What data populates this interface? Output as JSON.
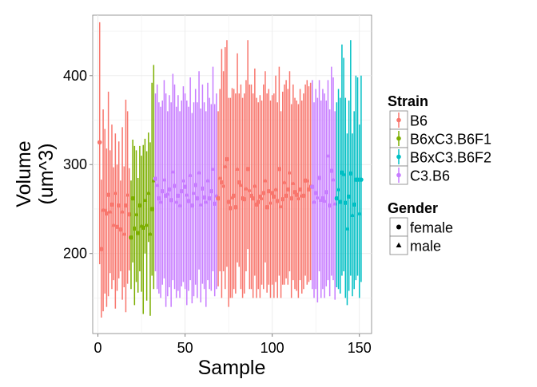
{
  "chart_data": {
    "type": "scatter",
    "subtype": "point-range (errorbar) plot",
    "xlabel": "Sample",
    "ylabel_lines": [
      "Volume",
      "(um^3)"
    ],
    "xlim": [
      -3,
      157
    ],
    "ylim": [
      110,
      468
    ],
    "x_ticks": [
      0,
      50,
      100,
      150
    ],
    "y_ticks": [
      200,
      300,
      400
    ],
    "grid": true,
    "legend_position": "right",
    "legends": [
      {
        "title": "Strain",
        "entries": [
          {
            "label": "B6",
            "color": "#F8766D"
          },
          {
            "label": "B6xC3.B6F1",
            "color": "#7CAE00"
          },
          {
            "label": "B6xC3.B6F2",
            "color": "#00BFC4"
          },
          {
            "label": "C3.B6",
            "color": "#C77CFF"
          }
        ]
      },
      {
        "title": "Gender",
        "entries": [
          {
            "label": "female",
            "shape": "circle"
          },
          {
            "label": "male",
            "shape": "triangle"
          }
        ]
      }
    ],
    "series": [
      {
        "strain": "B6",
        "x_from": 1,
        "x_to": 18,
        "samples": [
          [
            325,
            188,
            460,
            "f"
          ],
          [
            205,
            128,
            283,
            "f"
          ],
          [
            249,
            135,
            362,
            "m"
          ],
          [
            249,
            155,
            340,
            "m"
          ],
          [
            245,
            140,
            318,
            "f"
          ],
          [
            266,
            152,
            382,
            "f"
          ],
          [
            247,
            178,
            316,
            "m"
          ],
          [
            255,
            160,
            345,
            "f"
          ],
          [
            232,
            170,
            297,
            "m"
          ],
          [
            268,
            138,
            335,
            "m"
          ],
          [
            230,
            158,
            300,
            "f"
          ],
          [
            254,
            172,
            326,
            "f"
          ],
          [
            227,
            180,
            282,
            "f"
          ],
          [
            247,
            148,
            342,
            "m"
          ],
          [
            222,
            162,
            298,
            "m"
          ],
          [
            254,
            134,
            373,
            "f"
          ],
          [
            266,
            166,
            360,
            "m"
          ],
          [
            244,
            181,
            296,
            "f"
          ]
        ]
      },
      {
        "strain": "B6xC3.B6F1",
        "x_from": 19,
        "x_to": 32,
        "samples": [
          [
            218,
            160,
            282,
            "f"
          ],
          [
            262,
            190,
            328,
            "f"
          ],
          [
            228,
            142,
            321,
            "f"
          ],
          [
            244,
            168,
            316,
            "m"
          ],
          [
            223,
            156,
            285,
            "f"
          ],
          [
            254,
            180,
            321,
            "f"
          ],
          [
            231,
            157,
            310,
            "m"
          ],
          [
            229,
            132,
            322,
            "f"
          ],
          [
            260,
            200,
            329,
            "m"
          ],
          [
            232,
            147,
            315,
            "m"
          ],
          [
            268,
            213,
            336,
            "m"
          ],
          [
            222,
            130,
            325,
            "m"
          ],
          [
            250,
            175,
            392,
            "f"
          ],
          [
            282,
            160,
            412,
            "m"
          ]
        ]
      },
      {
        "strain": "C3.B6",
        "x_from": 33,
        "x_to": 68,
        "samples": [
          [
            284,
            180,
            380,
            "f"
          ],
          [
            277,
            160,
            390,
            "m"
          ],
          [
            262,
            155,
            370,
            "f"
          ],
          [
            258,
            150,
            365,
            "m"
          ],
          [
            270,
            165,
            372,
            "f"
          ],
          [
            283,
            172,
            395,
            "m"
          ],
          [
            265,
            140,
            380,
            "f"
          ],
          [
            267,
            152,
            360,
            "m"
          ],
          [
            272,
            162,
            378,
            "f"
          ],
          [
            260,
            140,
            370,
            "f"
          ],
          [
            292,
            170,
            402,
            "m"
          ],
          [
            276,
            160,
            390,
            "f"
          ],
          [
            258,
            150,
            365,
            "m"
          ],
          [
            265,
            158,
            378,
            "f"
          ],
          [
            254,
            150,
            360,
            "m"
          ],
          [
            270,
            163,
            372,
            "f"
          ],
          [
            282,
            168,
            388,
            "m"
          ],
          [
            275,
            160,
            380,
            "f"
          ],
          [
            266,
            142,
            372,
            "m"
          ],
          [
            259,
            158,
            365,
            "f"
          ],
          [
            288,
            170,
            398,
            "m"
          ],
          [
            254,
            144,
            358,
            "f"
          ],
          [
            268,
            152,
            370,
            "m"
          ],
          [
            277,
            165,
            385,
            "f"
          ],
          [
            262,
            150,
            370,
            "f"
          ],
          [
            291,
            182,
            405,
            "m"
          ],
          [
            255,
            145,
            363,
            "m"
          ],
          [
            273,
            166,
            390,
            "f"
          ],
          [
            263,
            160,
            370,
            "f"
          ],
          [
            258,
            140,
            360,
            "m"
          ],
          [
            282,
            170,
            392,
            "m"
          ],
          [
            262,
            160,
            375,
            "f"
          ],
          [
            270,
            158,
            368,
            "f"
          ],
          [
            295,
            180,
            410,
            "m"
          ],
          [
            256,
            152,
            368,
            "f"
          ],
          [
            265,
            160,
            380,
            "m"
          ]
        ]
      },
      {
        "strain": "B6",
        "x_from": 69,
        "x_to": 122,
        "samples": [
          [
            262,
            163,
            360,
            "f"
          ],
          [
            285,
            180,
            385,
            "m"
          ],
          [
            280,
            150,
            430,
            "f"
          ],
          [
            276,
            180,
            405,
            "m"
          ],
          [
            298,
            160,
            432,
            "m"
          ],
          [
            306,
            185,
            440,
            "f"
          ],
          [
            258,
            140,
            375,
            "f"
          ],
          [
            251,
            150,
            375,
            "f"
          ],
          [
            263,
            150,
            386,
            "m"
          ],
          [
            265,
            160,
            385,
            "f"
          ],
          [
            252,
            155,
            380,
            "f"
          ],
          [
            295,
            190,
            425,
            "m"
          ],
          [
            280,
            185,
            380,
            "f"
          ],
          [
            277,
            160,
            390,
            "m"
          ],
          [
            262,
            150,
            375,
            "f"
          ],
          [
            261,
            155,
            380,
            "f"
          ],
          [
            273,
            180,
            395,
            "m"
          ],
          [
            295,
            205,
            440,
            "f"
          ],
          [
            271,
            160,
            390,
            "m"
          ],
          [
            265,
            160,
            390,
            "f"
          ],
          [
            262,
            150,
            380,
            "f"
          ],
          [
            276,
            175,
            408,
            "m"
          ],
          [
            255,
            150,
            375,
            "f"
          ],
          [
            258,
            160,
            370,
            "f"
          ],
          [
            264,
            150,
            378,
            "f"
          ],
          [
            262,
            165,
            372,
            "m"
          ],
          [
            268,
            160,
            390,
            "f"
          ],
          [
            282,
            190,
            405,
            "m"
          ],
          [
            252,
            156,
            380,
            "f"
          ],
          [
            270,
            165,
            385,
            "f"
          ],
          [
            257,
            150,
            372,
            "m"
          ],
          [
            268,
            165,
            378,
            "f"
          ],
          [
            264,
            150,
            380,
            "f"
          ],
          [
            272,
            168,
            400,
            "m"
          ],
          [
            259,
            150,
            370,
            "f"
          ],
          [
            295,
            175,
            410,
            "f"
          ],
          [
            253,
            150,
            360,
            "m"
          ],
          [
            261,
            165,
            382,
            "f"
          ],
          [
            280,
            165,
            390,
            "m"
          ],
          [
            265,
            172,
            395,
            "f"
          ],
          [
            272,
            165,
            385,
            "f"
          ],
          [
            291,
            180,
            405,
            "m"
          ],
          [
            262,
            150,
            368,
            "f"
          ],
          [
            279,
            170,
            390,
            "m"
          ],
          [
            269,
            160,
            375,
            "f"
          ],
          [
            266,
            158,
            372,
            "f"
          ],
          [
            262,
            150,
            368,
            "m"
          ],
          [
            272,
            170,
            385,
            "f"
          ],
          [
            265,
            155,
            372,
            "m"
          ],
          [
            265,
            160,
            380,
            "f"
          ],
          [
            282,
            175,
            390,
            "f"
          ],
          [
            282,
            165,
            395,
            "m"
          ],
          [
            272,
            168,
            388,
            "f"
          ],
          [
            276,
            170,
            392,
            "m"
          ]
        ]
      },
      {
        "strain": "C3.B6",
        "x_from": 123,
        "x_to": 136,
        "samples": [
          [
            275,
            160,
            395,
            "f"
          ],
          [
            258,
            150,
            370,
            "m"
          ],
          [
            268,
            160,
            385,
            "f"
          ],
          [
            263,
            145,
            375,
            "m"
          ],
          [
            285,
            180,
            395,
            "f"
          ],
          [
            260,
            150,
            372,
            "m"
          ],
          [
            262,
            160,
            385,
            "f"
          ],
          [
            259,
            150,
            380,
            "m"
          ],
          [
            269,
            163,
            372,
            "f"
          ],
          [
            310,
            170,
            395,
            "m"
          ],
          [
            254,
            152,
            362,
            "f"
          ],
          [
            293,
            175,
            410,
            "f"
          ],
          [
            283,
            170,
            398,
            "m"
          ],
          [
            256,
            148,
            360,
            "m"
          ]
        ]
      },
      {
        "strain": "B6xC3.B6F2",
        "x_from": 137,
        "x_to": 151,
        "samples": [
          [
            262,
            162,
            370,
            "f"
          ],
          [
            272,
            160,
            385,
            "m"
          ],
          [
            258,
            155,
            375,
            "f"
          ],
          [
            291,
            175,
            435,
            "f"
          ],
          [
            289,
            180,
            420,
            "m"
          ],
          [
            257,
            150,
            375,
            "f"
          ],
          [
            228,
            142,
            335,
            "m"
          ],
          [
            264,
            158,
            372,
            "f"
          ],
          [
            290,
            175,
            440,
            "f"
          ],
          [
            243,
            152,
            335,
            "m"
          ],
          [
            255,
            160,
            360,
            "f"
          ],
          [
            283,
            170,
            400,
            "f"
          ],
          [
            283,
            175,
            398,
            "f"
          ],
          [
            245,
            150,
            345,
            "m"
          ],
          [
            283,
            168,
            400,
            "f"
          ]
        ]
      }
    ]
  }
}
